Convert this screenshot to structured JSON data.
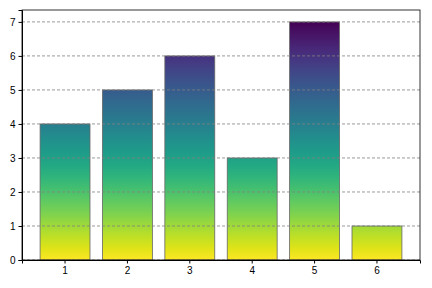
{
  "chart_data": {
    "type": "bar",
    "categories": [
      "1",
      "2",
      "3",
      "4",
      "5",
      "6"
    ],
    "values": [
      4,
      5,
      6,
      3,
      7,
      1
    ],
    "color": "viridis",
    "ylim": [
      0,
      7.35
    ],
    "yticks": [
      0,
      1,
      2,
      3,
      4,
      5,
      6,
      7
    ],
    "grid": true
  }
}
